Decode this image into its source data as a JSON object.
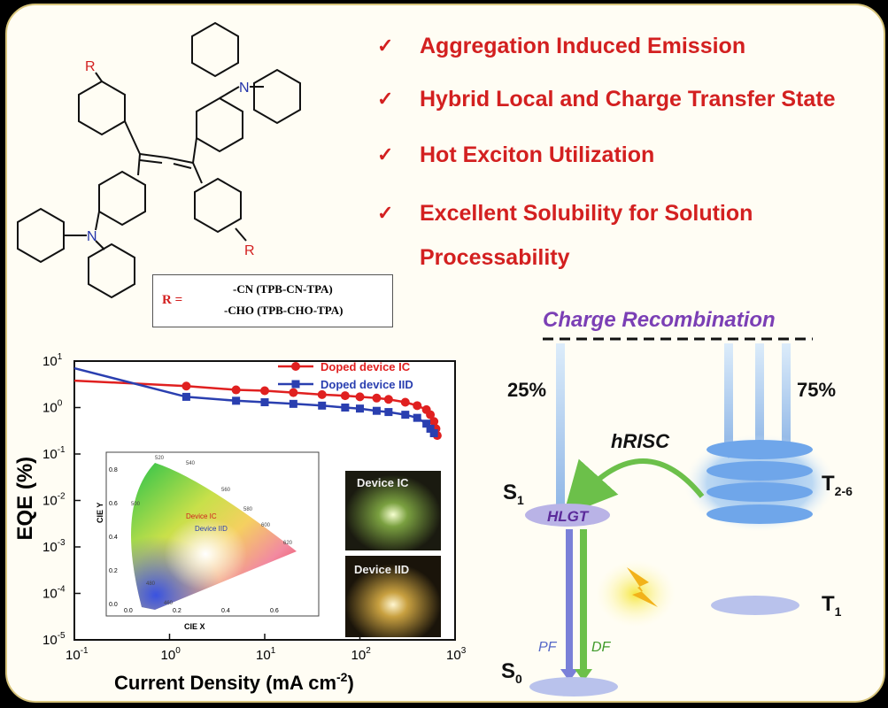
{
  "features": [
    {
      "text": "Aggregation Induced Emission"
    },
    {
      "text": "Hybrid Local and Charge Transfer State"
    },
    {
      "text": "Hot Exciton Utilization"
    },
    {
      "text": "Excellent Solubility for Solution"
    },
    {
      "text": "Processability"
    }
  ],
  "structure": {
    "r_label": "R",
    "n_label": "N",
    "r_eq": "R =",
    "subst1": "-CN  (TPB-CN-TPA)",
    "subst2": "-CHO (TPB-CHO-TPA)"
  },
  "energy": {
    "title": "Charge Recombination",
    "pct_singlet": "25%",
    "pct_triplet": "75%",
    "hrisc": "hRISC",
    "s1": "S",
    "s1_sub": "1",
    "hlgt": "HLGT",
    "t26": "T",
    "t26_sub": "2-6",
    "t1": "T",
    "t1_sub": "1",
    "s0": "S",
    "s0_sub": "0",
    "pf": "PF",
    "df": "DF"
  },
  "chart_data": {
    "type": "line",
    "xlabel": "Current Density (mA cm",
    "xlabel_sup": "-2",
    "xlabel_end": ")",
    "ylabel": "EQE (%)",
    "xscale": "log",
    "yscale": "log",
    "xlim": [
      0.1,
      1000
    ],
    "ylim": [
      1e-05,
      10
    ],
    "x_ticks": [
      {
        "base": "10",
        "exp": "-1"
      },
      {
        "base": "10",
        "exp": "0"
      },
      {
        "base": "10",
        "exp": "1"
      },
      {
        "base": "10",
        "exp": "2"
      },
      {
        "base": "10",
        "exp": "3"
      }
    ],
    "y_ticks": [
      {
        "base": "10",
        "exp": "1"
      },
      {
        "base": "10",
        "exp": "0"
      },
      {
        "base": "10",
        "exp": "-1"
      },
      {
        "base": "10",
        "exp": "-2"
      },
      {
        "base": "10",
        "exp": "-3"
      },
      {
        "base": "10",
        "exp": "-4"
      },
      {
        "base": "10",
        "exp": "-5"
      }
    ],
    "legend_position": "top-right",
    "series": [
      {
        "name": "Doped device IC",
        "color": "#e02020",
        "marker": "circle",
        "points": [
          [
            0.1,
            3.8
          ],
          [
            1.5,
            2.9
          ],
          [
            5,
            2.4
          ],
          [
            10,
            2.3
          ],
          [
            20,
            2.1
          ],
          [
            40,
            1.9
          ],
          [
            70,
            1.8
          ],
          [
            100,
            1.7
          ],
          [
            150,
            1.6
          ],
          [
            200,
            1.5
          ],
          [
            300,
            1.3
          ],
          [
            400,
            1.1
          ],
          [
            500,
            0.9
          ],
          [
            550,
            0.7
          ],
          [
            600,
            0.5
          ],
          [
            630,
            0.35
          ],
          [
            650,
            0.25
          ]
        ]
      },
      {
        "name": "Doped device IID",
        "color": "#2a3fb0",
        "marker": "square",
        "points": [
          [
            0.1,
            7.0
          ],
          [
            1.5,
            1.7
          ],
          [
            5,
            1.4
          ],
          [
            10,
            1.3
          ],
          [
            20,
            1.2
          ],
          [
            40,
            1.1
          ],
          [
            70,
            1.0
          ],
          [
            100,
            0.95
          ],
          [
            150,
            0.85
          ],
          [
            200,
            0.8
          ],
          [
            300,
            0.7
          ],
          [
            400,
            0.6
          ],
          [
            500,
            0.45
          ],
          [
            550,
            0.35
          ],
          [
            600,
            0.28
          ]
        ]
      }
    ]
  },
  "cie": {
    "xlabel": "CIE X",
    "ylabel": "CIE Y",
    "x_ticks": [
      "0.0",
      "0.2",
      "0.4",
      "0.6"
    ],
    "y_ticks": [
      "0.8",
      "0.6",
      "0.4",
      "0.2",
      "0.0"
    ],
    "wavelengths": [
      "520",
      "540",
      "560",
      "580",
      "600",
      "620",
      "500",
      "480",
      "460"
    ],
    "label_ic": "Device IC",
    "label_iid": "Device IID"
  },
  "photos": {
    "ic": "Device IC",
    "iid": "Device IID"
  }
}
